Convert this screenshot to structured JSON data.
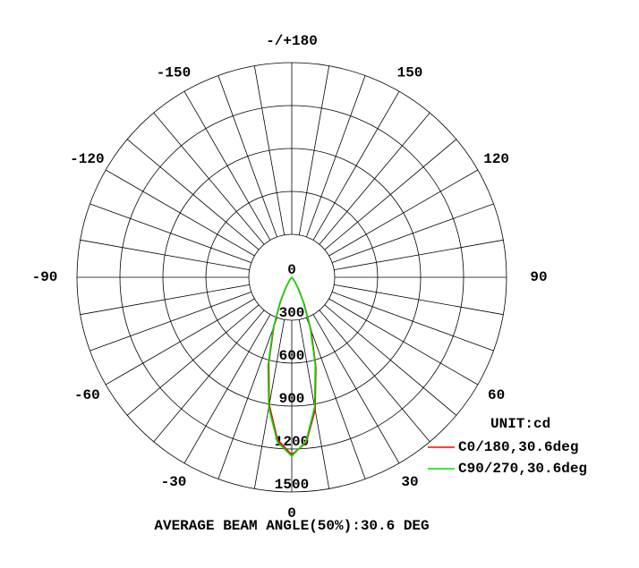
{
  "chart_data": {
    "type": "polar",
    "rlim": [
      0,
      1500
    ],
    "rticks": [
      0,
      300,
      600,
      900,
      1200,
      1500
    ],
    "angle_ticks": [
      -150,
      -120,
      -90,
      -60,
      -30,
      0,
      30,
      60,
      90,
      120,
      150,
      {
        "value": 180,
        "label": "-/+180"
      }
    ],
    "unit_label": "UNIT:cd",
    "footer": "AVERAGE BEAM ANGLE(50%):30.6 DEG",
    "x": [
      -45,
      -40,
      -35,
      -30,
      -25,
      -20,
      -15,
      -10,
      -5,
      0,
      5,
      10,
      15,
      20,
      25,
      30,
      35,
      40,
      45
    ],
    "series": [
      {
        "name": "C0/180,30.6deg",
        "color": "#ff0000",
        "values": [
          0,
          10,
          30,
          80,
          185,
          365,
          620,
          905,
          1140,
          1240,
          1160,
          940,
          650,
          395,
          205,
          95,
          38,
          12,
          0
        ]
      },
      {
        "name": "C90/270,30.6deg",
        "color": "#00dd00",
        "values": [
          0,
          12,
          35,
          88,
          195,
          380,
          640,
          925,
          1155,
          1250,
          1150,
          920,
          635,
          378,
          193,
          86,
          33,
          11,
          0
        ]
      }
    ]
  }
}
